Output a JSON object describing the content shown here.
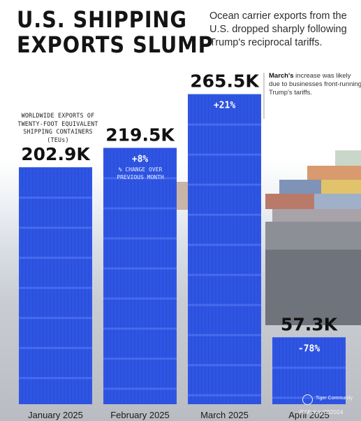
{
  "header": {
    "title_line1": "U.S. SHIPPING",
    "title_line2": "EXPORTS SLUMP",
    "subtitle": "Ocean carrier exports from the U.S. dropped sharply following Trump's reciprocal tariffs."
  },
  "annotations": {
    "units_note": "WORLDWIDE EXPORTS OF TWENTY-FOOT EQUIVALENT SHIPPING CONTAINERS (TEUs)",
    "pct_note": "% CHANGE OVER PREVIOUS MONTH",
    "march_note_bold": "March's",
    "march_note_rest": " increase was likely due to businesses front-running Trump's tariffs."
  },
  "credit": {
    "brand": "Tiger Community",
    "handle": "@Mickey082024"
  },
  "colors": {
    "bar": "#2f55e4",
    "bar_rib": "#2546c8",
    "bar_highlight": "#4a6df0"
  },
  "chart_data": {
    "type": "bar",
    "categories": [
      "January 2025",
      "February 2025",
      "March 2025",
      "April 2025"
    ],
    "values": [
      202.9,
      219.5,
      265.5,
      57.3
    ],
    "value_labels": [
      "202.9K",
      "219.5K",
      "265.5K",
      "57.3K"
    ],
    "pct_change_labels": [
      "",
      "+8%",
      "+21%",
      "-78%"
    ],
    "ylabel": "WORLDWIDE EXPORTS OF TWENTY-FOOT EQUIVALENT SHIPPING CONTAINERS (TEUs)",
    "unit": "thousand TEUs",
    "grid": false,
    "legend": "none"
  }
}
